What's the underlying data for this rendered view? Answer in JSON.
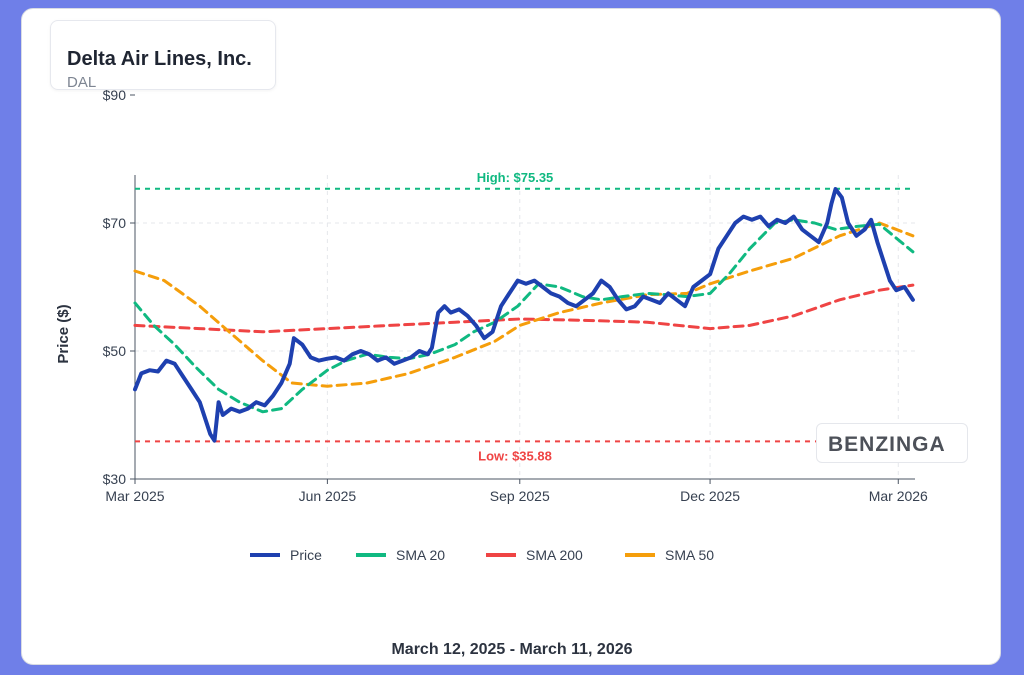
{
  "header": {
    "company": "Delta Air Lines, Inc.",
    "ticker": "DAL"
  },
  "footer": {
    "date_range": "March 12, 2025 - March 11, 2026"
  },
  "watermark": {
    "text": "BENZINGA"
  },
  "chart_data": {
    "type": "line",
    "ylabel": "Price ($)",
    "ylim": [
      30,
      90
    ],
    "yticks": [
      {
        "value": 30,
        "label": "$30"
      },
      {
        "value": 50,
        "label": "$50"
      },
      {
        "value": 70,
        "label": "$70"
      },
      {
        "value": 90,
        "label": "$90"
      }
    ],
    "xlim": [
      "2025-03-01",
      "2026-03-09"
    ],
    "xticks": [
      {
        "date": "2025-03-01",
        "label": "Mar 2025"
      },
      {
        "date": "2025-06-01",
        "label": "Jun 2025"
      },
      {
        "date": "2025-09-01",
        "label": "Sep 2025"
      },
      {
        "date": "2025-12-01",
        "label": "Dec 2025"
      },
      {
        "date": "2026-03-01",
        "label": "Mar 2026"
      }
    ],
    "grid": true,
    "legend_position": "bottom",
    "annotations": {
      "high": {
        "label": "High: $75.35",
        "value": 75.35,
        "color": "#10b981"
      },
      "low": {
        "label": "Low: $35.88",
        "value": 35.88,
        "color": "#ef4444"
      }
    },
    "series": [
      {
        "name": "Price",
        "color": "#1e40af",
        "dash": "solid",
        "points": [
          [
            "2025-03-01",
            44
          ],
          [
            "2025-03-04",
            46.5
          ],
          [
            "2025-03-08",
            47
          ],
          [
            "2025-03-12",
            46.8
          ],
          [
            "2025-03-16",
            48.5
          ],
          [
            "2025-03-20",
            48
          ],
          [
            "2025-03-24",
            46
          ],
          [
            "2025-03-28",
            44
          ],
          [
            "2025-04-01",
            42
          ],
          [
            "2025-04-04",
            39
          ],
          [
            "2025-04-06",
            37
          ],
          [
            "2025-04-08",
            36
          ],
          [
            "2025-04-10",
            42
          ],
          [
            "2025-04-12",
            40
          ],
          [
            "2025-04-16",
            41
          ],
          [
            "2025-04-20",
            40.5
          ],
          [
            "2025-04-24",
            41
          ],
          [
            "2025-04-28",
            42
          ],
          [
            "2025-05-02",
            41.5
          ],
          [
            "2025-05-06",
            43
          ],
          [
            "2025-05-10",
            45
          ],
          [
            "2025-05-14",
            48
          ],
          [
            "2025-05-16",
            52
          ],
          [
            "2025-05-20",
            51
          ],
          [
            "2025-05-24",
            49
          ],
          [
            "2025-05-28",
            48.5
          ],
          [
            "2025-06-01",
            48.8
          ],
          [
            "2025-06-05",
            49
          ],
          [
            "2025-06-09",
            48.5
          ],
          [
            "2025-06-13",
            49.5
          ],
          [
            "2025-06-17",
            50
          ],
          [
            "2025-06-21",
            49.5
          ],
          [
            "2025-06-25",
            48.5
          ],
          [
            "2025-06-29",
            49
          ],
          [
            "2025-07-03",
            48
          ],
          [
            "2025-07-07",
            48.5
          ],
          [
            "2025-07-11",
            49
          ],
          [
            "2025-07-15",
            50
          ],
          [
            "2025-07-19",
            49.5
          ],
          [
            "2025-07-21",
            50.5
          ],
          [
            "2025-07-24",
            56
          ],
          [
            "2025-07-27",
            57
          ],
          [
            "2025-07-30",
            56
          ],
          [
            "2025-08-03",
            56.5
          ],
          [
            "2025-08-07",
            55.5
          ],
          [
            "2025-08-11",
            54
          ],
          [
            "2025-08-15",
            52
          ],
          [
            "2025-08-19",
            53
          ],
          [
            "2025-08-23",
            57
          ],
          [
            "2025-08-27",
            59
          ],
          [
            "2025-08-31",
            61
          ],
          [
            "2025-09-04",
            60.5
          ],
          [
            "2025-09-08",
            61
          ],
          [
            "2025-09-12",
            60
          ],
          [
            "2025-09-16",
            59
          ],
          [
            "2025-09-20",
            58.5
          ],
          [
            "2025-09-24",
            57.5
          ],
          [
            "2025-09-28",
            57
          ],
          [
            "2025-10-02",
            58
          ],
          [
            "2025-10-06",
            59
          ],
          [
            "2025-10-10",
            61
          ],
          [
            "2025-10-14",
            60
          ],
          [
            "2025-10-18",
            58
          ],
          [
            "2025-10-22",
            56.5
          ],
          [
            "2025-10-26",
            57
          ],
          [
            "2025-10-30",
            58.5
          ],
          [
            "2025-11-03",
            58
          ],
          [
            "2025-11-07",
            57.5
          ],
          [
            "2025-11-11",
            59
          ],
          [
            "2025-11-15",
            58
          ],
          [
            "2025-11-19",
            57
          ],
          [
            "2025-11-23",
            60
          ],
          [
            "2025-11-27",
            61
          ],
          [
            "2025-12-01",
            62
          ],
          [
            "2025-12-05",
            66
          ],
          [
            "2025-12-09",
            68
          ],
          [
            "2025-12-13",
            70
          ],
          [
            "2025-12-17",
            71
          ],
          [
            "2025-12-21",
            70.5
          ],
          [
            "2025-12-25",
            71
          ],
          [
            "2025-12-29",
            69.5
          ],
          [
            "2026-01-02",
            70.5
          ],
          [
            "2026-01-06",
            70
          ],
          [
            "2026-01-10",
            71
          ],
          [
            "2026-01-14",
            69
          ],
          [
            "2026-01-18",
            68
          ],
          [
            "2026-01-22",
            67
          ],
          [
            "2026-01-26",
            70
          ],
          [
            "2026-01-28",
            73
          ],
          [
            "2026-01-30",
            75.3
          ],
          [
            "2026-02-02",
            74
          ],
          [
            "2026-02-05",
            70
          ],
          [
            "2026-02-09",
            68
          ],
          [
            "2026-02-13",
            69
          ],
          [
            "2026-02-16",
            70.5
          ],
          [
            "2026-02-19",
            67
          ],
          [
            "2026-02-22",
            64
          ],
          [
            "2026-02-25",
            61
          ],
          [
            "2026-02-28",
            59.5
          ],
          [
            "2026-03-04",
            60
          ],
          [
            "2026-03-08",
            58
          ]
        ]
      },
      {
        "name": "SMA 20",
        "color": "#10b981",
        "dash": "dashed",
        "points": [
          [
            "2025-03-01",
            57.5
          ],
          [
            "2025-03-10",
            54
          ],
          [
            "2025-03-20",
            51
          ],
          [
            "2025-03-30",
            47.5
          ],
          [
            "2025-04-10",
            44
          ],
          [
            "2025-04-20",
            42
          ],
          [
            "2025-05-01",
            40.5
          ],
          [
            "2025-05-10",
            41
          ],
          [
            "2025-05-20",
            44
          ],
          [
            "2025-06-01",
            47
          ],
          [
            "2025-06-10",
            48.5
          ],
          [
            "2025-06-20",
            49.5
          ],
          [
            "2025-07-01",
            49
          ],
          [
            "2025-07-10",
            48.8
          ],
          [
            "2025-07-20",
            49.5
          ],
          [
            "2025-08-01",
            51
          ],
          [
            "2025-08-10",
            53
          ],
          [
            "2025-08-20",
            54.5
          ],
          [
            "2025-08-31",
            57
          ],
          [
            "2025-09-10",
            60.5
          ],
          [
            "2025-09-20",
            60
          ],
          [
            "2025-10-01",
            58.5
          ],
          [
            "2025-10-10",
            58
          ],
          [
            "2025-10-20",
            58.5
          ],
          [
            "2025-11-01",
            59
          ],
          [
            "2025-11-10",
            58.8
          ],
          [
            "2025-11-20",
            58.5
          ],
          [
            "2025-12-01",
            59
          ],
          [
            "2025-12-10",
            62
          ],
          [
            "2025-12-20",
            66
          ],
          [
            "2026-01-01",
            70
          ],
          [
            "2026-01-10",
            70.5
          ],
          [
            "2026-01-20",
            70
          ],
          [
            "2026-01-30",
            69
          ],
          [
            "2026-02-10",
            69.5
          ],
          [
            "2026-02-20",
            69.8
          ],
          [
            "2026-03-08",
            65.5
          ]
        ]
      },
      {
        "name": "SMA 200",
        "color": "#ef4444",
        "dash": "dashed",
        "points": [
          [
            "2025-03-01",
            54
          ],
          [
            "2025-04-01",
            53.5
          ],
          [
            "2025-05-01",
            53
          ],
          [
            "2025-06-01",
            53.5
          ],
          [
            "2025-07-01",
            54
          ],
          [
            "2025-08-01",
            54.5
          ],
          [
            "2025-09-01",
            55
          ],
          [
            "2025-10-01",
            54.8
          ],
          [
            "2025-11-01",
            54.5
          ],
          [
            "2025-12-01",
            53.5
          ],
          [
            "2025-12-20",
            54
          ],
          [
            "2026-01-10",
            55.5
          ],
          [
            "2026-02-01",
            58
          ],
          [
            "2026-02-20",
            59.5
          ],
          [
            "2026-03-08",
            60.3
          ]
        ]
      },
      {
        "name": "SMA 50",
        "color": "#f59e0b",
        "dash": "dashed",
        "points": [
          [
            "2025-03-01",
            62.5
          ],
          [
            "2025-03-15",
            61
          ],
          [
            "2025-04-01",
            57
          ],
          [
            "2025-04-15",
            53
          ],
          [
            "2025-05-01",
            48.5
          ],
          [
            "2025-05-15",
            45
          ],
          [
            "2025-06-01",
            44.5
          ],
          [
            "2025-06-20",
            45
          ],
          [
            "2025-07-10",
            46.5
          ],
          [
            "2025-08-01",
            49
          ],
          [
            "2025-08-20",
            51.5
          ],
          [
            "2025-09-01",
            54
          ],
          [
            "2025-09-20",
            56
          ],
          [
            "2025-10-10",
            57.5
          ],
          [
            "2025-11-01",
            58.8
          ],
          [
            "2025-11-20",
            59
          ],
          [
            "2025-12-01",
            60.5
          ],
          [
            "2025-12-20",
            62.5
          ],
          [
            "2026-01-10",
            64.5
          ],
          [
            "2026-02-01",
            68
          ],
          [
            "2026-02-20",
            70
          ],
          [
            "2026-03-08",
            68
          ]
        ]
      }
    ]
  }
}
